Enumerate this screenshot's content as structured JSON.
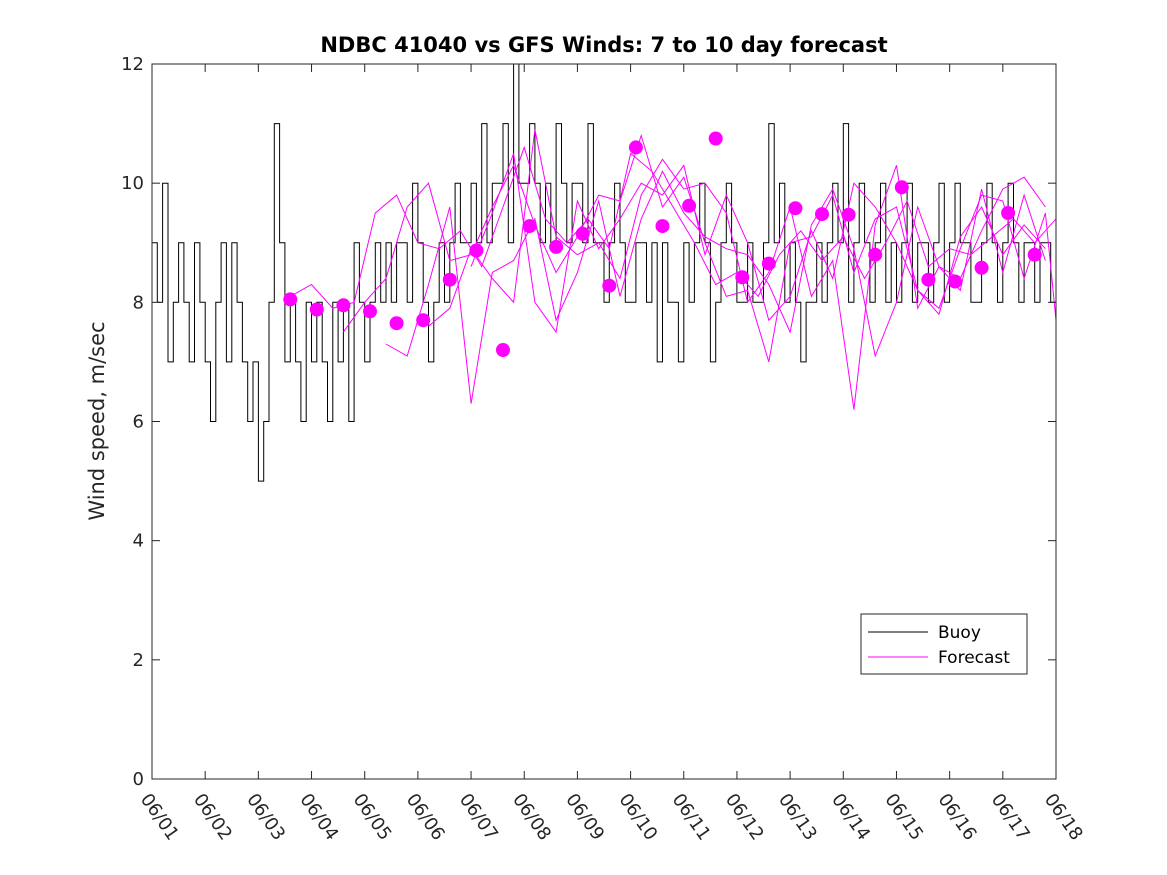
{
  "chart_data": {
    "type": "line",
    "title": "NDBC 41040 vs GFS Winds: 7 to 10 day forecast",
    "xlabel": "",
    "ylabel": "Wind speed, m/sec",
    "ylim": [
      0,
      12
    ],
    "yticks": [
      0,
      2,
      4,
      6,
      8,
      10,
      12
    ],
    "xlim_days": [
      1,
      18
    ],
    "xticks": [
      "06/01",
      "06/02",
      "06/03",
      "06/04",
      "06/05",
      "06/06",
      "06/07",
      "06/08",
      "06/09",
      "06/10",
      "06/11",
      "06/12",
      "06/13",
      "06/14",
      "06/15",
      "06/16",
      "06/17",
      "06/18"
    ],
    "grid": false,
    "legend": {
      "location": "bottom-right",
      "entries": [
        "Buoy",
        "Forecast"
      ]
    },
    "colors": {
      "buoy": "#000000",
      "forecast": "#ff00ff"
    },
    "series": [
      {
        "name": "Buoy",
        "style": "line",
        "day": [
          1.0,
          1.1,
          1.2,
          1.3,
          1.4,
          1.5,
          1.6,
          1.7,
          1.8,
          1.9,
          2.0,
          2.1,
          2.2,
          2.3,
          2.4,
          2.5,
          2.6,
          2.7,
          2.8,
          2.9,
          3.0,
          3.1,
          3.2,
          3.3,
          3.4,
          3.5,
          3.6,
          3.7,
          3.8,
          3.9,
          4.0,
          4.1,
          4.2,
          4.3,
          4.4,
          4.5,
          4.6,
          4.7,
          4.8,
          4.9,
          5.0,
          5.1,
          5.2,
          5.3,
          5.4,
          5.5,
          5.6,
          5.7,
          5.8,
          5.9,
          6.0,
          6.1,
          6.2,
          6.3,
          6.4,
          6.5,
          6.6,
          6.7,
          6.8,
          6.9,
          7.0,
          7.1,
          7.2,
          7.3,
          7.4,
          7.5,
          7.6,
          7.7,
          7.8,
          7.9,
          8.0,
          8.1,
          8.2,
          8.3,
          8.4,
          8.5,
          8.6,
          8.7,
          8.8,
          8.9,
          9.0,
          9.1,
          9.2,
          9.3,
          9.4,
          9.5,
          9.6,
          9.7,
          9.8,
          9.9,
          10.0,
          10.1,
          10.2,
          10.3,
          10.4,
          10.5,
          10.6,
          10.7,
          10.8,
          10.9,
          11.0,
          11.1,
          11.2,
          11.3,
          11.4,
          11.5,
          11.6,
          11.7,
          11.8,
          11.9,
          12.0,
          12.1,
          12.2,
          12.3,
          12.4,
          12.5,
          12.6,
          12.7,
          12.8,
          12.9,
          13.0,
          13.1,
          13.2,
          13.3,
          13.4,
          13.5,
          13.6,
          13.7,
          13.8,
          13.9,
          14.0,
          14.1,
          14.2,
          14.3,
          14.4,
          14.5,
          14.6,
          14.7,
          14.8,
          14.9,
          15.0,
          15.1,
          15.2,
          15.3,
          15.4,
          15.5,
          15.6,
          15.7,
          15.8,
          15.9,
          16.0,
          16.1,
          16.2,
          16.3,
          16.4,
          16.5,
          16.6,
          16.7,
          16.8,
          16.9,
          17.0,
          17.1,
          17.2,
          17.3,
          17.4,
          17.5,
          17.6,
          17.7,
          17.8,
          17.9,
          18.0
        ],
        "values": [
          9,
          8,
          10,
          7,
          8,
          9,
          8,
          7,
          9,
          8,
          7,
          6,
          8,
          9,
          7,
          9,
          8,
          7,
          6,
          7,
          5,
          6,
          8,
          11,
          9,
          7,
          8,
          7,
          6,
          8,
          7,
          8,
          7,
          6,
          8,
          7,
          8,
          6,
          9,
          8,
          7,
          8,
          9,
          8,
          9,
          8,
          9,
          9,
          8,
          10,
          9,
          8,
          7,
          8,
          9,
          8,
          9,
          10,
          9,
          9,
          10,
          9,
          11,
          9,
          10,
          10,
          11,
          9,
          12,
          10,
          10,
          11,
          10,
          9,
          10,
          9,
          11,
          10,
          9,
          10,
          10,
          9,
          11,
          9,
          9,
          8,
          9,
          10,
          9,
          8,
          8,
          9,
          9,
          8,
          9,
          7,
          9,
          8,
          8,
          7,
          9,
          8,
          9,
          10,
          9,
          7,
          8,
          9,
          10,
          9,
          8,
          8,
          9,
          8,
          8,
          9,
          11,
          9,
          10,
          8,
          9,
          8,
          7,
          8,
          8,
          9,
          8,
          9,
          10,
          9,
          11,
          8,
          9,
          10,
          9,
          8,
          9,
          10,
          8,
          9,
          8,
          9,
          10,
          8,
          9,
          9,
          8,
          9,
          10,
          8,
          9,
          10,
          9,
          9,
          8,
          8,
          9,
          10,
          9,
          8,
          9,
          10,
          9,
          8,
          9,
          9,
          8,
          9,
          9,
          8,
          9,
          8,
          9,
          9,
          9,
          9
        ]
      },
      {
        "name": "Forecast",
        "style": "line",
        "day": [
          3.6,
          4.0,
          4.4,
          4.8,
          5.2,
          5.6,
          6.0,
          6.4,
          6.8,
          7.2,
          7.6,
          8.0,
          8.4,
          8.8,
          9.2,
          9.6,
          10.0,
          10.4,
          10.8,
          11.2,
          11.6,
          12.0,
          12.4,
          12.8,
          13.2,
          13.6,
          14.0,
          14.4,
          14.8,
          15.2,
          15.6,
          16.0,
          16.4,
          16.8,
          17.2,
          17.6,
          18.0
        ],
        "values": [
          8.1,
          8.3,
          7.9,
          8.0,
          9.5,
          9.8,
          9.0,
          8.9,
          9.2,
          8.6,
          9.6,
          10.6,
          9.4,
          9.0,
          9.4,
          8.9,
          10.5,
          10.2,
          9.6,
          9.0,
          8.3,
          8.5,
          8.1,
          8.8,
          9.2,
          8.7,
          9.1,
          8.4,
          9.0,
          9.7,
          8.6,
          8.9,
          8.8,
          9.1,
          9.4,
          9.0,
          9.4
        ]
      },
      {
        "name": "Forecast",
        "style": "line",
        "day": [
          4.6,
          5.0,
          5.4,
          5.8,
          6.2,
          6.6,
          7.0,
          7.4,
          7.8,
          8.2,
          8.6,
          9.0,
          9.4,
          9.8,
          10.2,
          10.6,
          11.0,
          11.4,
          11.8,
          12.2,
          12.6,
          13.0,
          13.4,
          13.8,
          14.2,
          14.6,
          15.0,
          15.4,
          15.8,
          16.2,
          16.6,
          17.0,
          17.4,
          17.8
        ],
        "values": [
          7.5,
          8.0,
          8.4,
          9.6,
          10.0,
          8.7,
          8.8,
          9.6,
          10.3,
          9.3,
          8.5,
          9.1,
          9.8,
          9.7,
          10.8,
          9.6,
          10.1,
          9.0,
          8.1,
          8.2,
          7.0,
          9.0,
          9.1,
          9.8,
          8.5,
          9.4,
          9.6,
          8.2,
          7.8,
          9.1,
          9.6,
          8.8,
          9.3,
          8.9
        ]
      },
      {
        "name": "Forecast",
        "style": "line",
        "day": [
          6.2,
          6.6,
          7.0,
          7.4,
          7.8,
          8.2,
          8.6,
          9.0,
          9.4,
          9.8,
          10.2,
          10.6,
          11.0,
          11.4,
          11.8,
          12.2,
          12.6,
          13.0,
          13.4,
          13.8,
          14.2,
          14.6,
          15.0,
          15.4,
          15.8,
          16.2,
          16.6,
          17.0,
          17.4,
          17.8
        ],
        "values": [
          7.6,
          7.9,
          8.9,
          8.4,
          8.0,
          10.9,
          9.1,
          8.8,
          9.0,
          8.4,
          9.8,
          10.4,
          9.9,
          10.0,
          9.5,
          8.0,
          8.5,
          9.6,
          8.1,
          8.7,
          6.2,
          9.3,
          10.3,
          7.9,
          8.6,
          8.4,
          9.2,
          9.9,
          10.1,
          9.6
        ]
      },
      {
        "name": "Forecast",
        "style": "line",
        "day": [
          5.4,
          5.8,
          6.2,
          6.6,
          7.0,
          7.4,
          7.8,
          8.2,
          8.6,
          9.0,
          9.4,
          9.8,
          10.2,
          10.6,
          11.0,
          11.4,
          11.8,
          12.2,
          12.6,
          13.0,
          13.4,
          13.8,
          14.2,
          14.6,
          15.0,
          15.4,
          15.8,
          16.2,
          16.6,
          17.0,
          17.4,
          17.8
        ],
        "values": [
          7.3,
          7.1,
          8.3,
          9.6,
          6.3,
          8.5,
          8.7,
          9.4,
          7.7,
          8.5,
          9.7,
          8.1,
          9.4,
          10.2,
          9.5,
          9.1,
          8.9,
          8.8,
          8.3,
          7.5,
          9.3,
          9.9,
          8.9,
          7.1,
          8.0,
          9.6,
          8.6,
          8.2,
          9.9,
          8.5,
          9.8,
          8.7
        ]
      },
      {
        "name": "Forecast",
        "style": "line",
        "day": [
          7.0,
          7.4,
          7.8,
          8.2,
          8.6,
          9.0,
          9.4,
          9.8,
          10.2,
          10.6,
          11.0,
          11.4,
          11.8,
          12.2,
          12.6,
          13.0,
          13.4,
          13.8,
          14.2,
          14.6,
          15.0,
          15.4,
          15.8,
          16.2,
          16.6,
          17.0,
          17.4,
          17.8,
          18.0
        ],
        "values": [
          8.6,
          9.5,
          10.5,
          8.0,
          7.5,
          9.7,
          8.9,
          9.4,
          10.0,
          9.8,
          10.3,
          8.8,
          9.8,
          9.0,
          7.7,
          8.1,
          9.2,
          8.4,
          10.0,
          9.6,
          9.0,
          8.2,
          7.9,
          8.9,
          9.8,
          9.7,
          8.4,
          9.5,
          7.7
        ]
      },
      {
        "name": "Forecast",
        "style": "points",
        "day": [
          3.6,
          4.1,
          4.6,
          5.1,
          5.6,
          6.1,
          6.6,
          7.1,
          7.6,
          8.1,
          8.6,
          9.1,
          9.6,
          10.1,
          10.6,
          11.1,
          11.6,
          12.1,
          12.6,
          13.1,
          13.6,
          14.1,
          14.6,
          15.1,
          15.6,
          16.1,
          16.6,
          17.1,
          17.6
        ],
        "values": [
          8.05,
          7.88,
          7.95,
          7.85,
          7.65,
          7.7,
          8.38,
          8.87,
          7.2,
          9.28,
          8.93,
          9.15,
          8.28,
          10.6,
          9.28,
          9.62,
          10.75,
          8.42,
          8.65,
          9.58,
          9.48,
          9.47,
          8.8,
          9.93,
          8.38,
          8.35,
          8.58,
          9.5,
          8.8
        ]
      }
    ]
  }
}
